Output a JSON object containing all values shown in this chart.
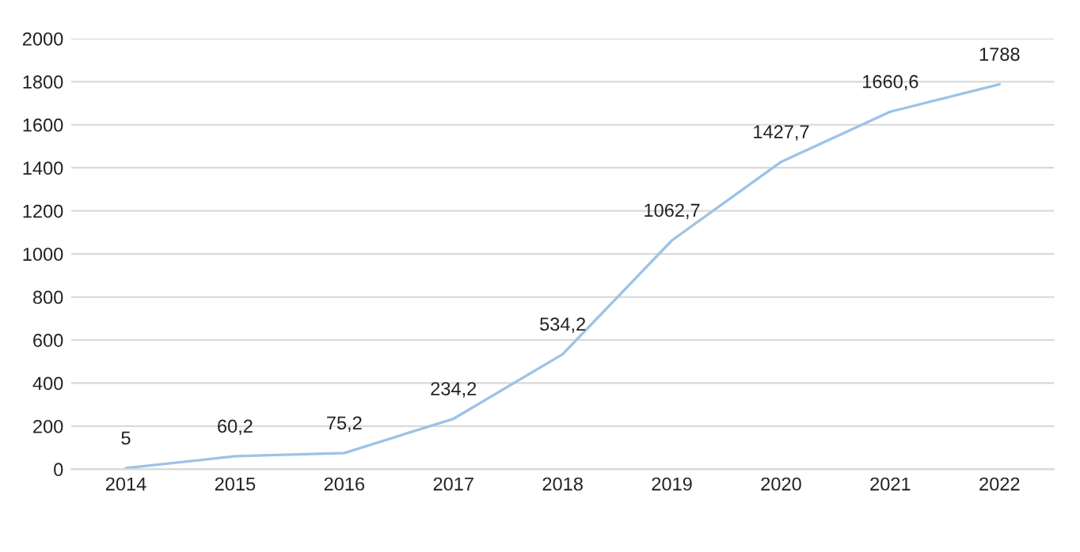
{
  "chart_data": {
    "type": "line",
    "categories": [
      "2014",
      "2015",
      "2016",
      "2017",
      "2018",
      "2019",
      "2020",
      "2021",
      "2022"
    ],
    "series": [
      {
        "color": "#9dc3e6",
        "values": [
          5,
          60.2,
          75.2,
          234.2,
          534.2,
          1062.7,
          1427.7,
          1660.6,
          1788
        ],
        "value_labels": [
          "5",
          "60,2",
          "75,2",
          "234,2",
          "534,2",
          "1062,7",
          "1427,7",
          "1660,6",
          "1788"
        ]
      }
    ],
    "ylim": [
      0,
      2000
    ],
    "yticks": [
      0,
      200,
      400,
      600,
      800,
      1000,
      1200,
      1400,
      1600,
      1800,
      2000
    ],
    "grid": "y",
    "marker": "none",
    "line_style": "solid"
  }
}
